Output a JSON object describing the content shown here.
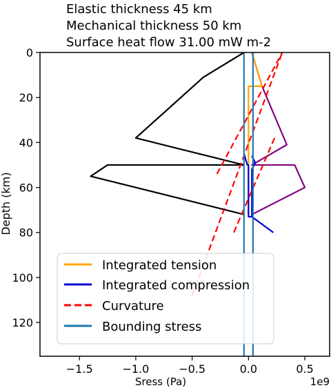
{
  "chart_data": {
    "type": "line",
    "title_lines": [
      "Elastic thickness 45 km",
      "Mechanical thickness 50 km",
      "Surface heat flow 31.00 mW m-2"
    ],
    "xlabel": "Sress (Pa)",
    "ylabel": "Depth (km)",
    "x_scale_label": "1e9",
    "xlim": [
      -1.85,
      0.72
    ],
    "ylim": [
      135,
      0
    ],
    "y_inverted": true,
    "x_ticks": [
      -1.5,
      -1.0,
      -0.5,
      0.0,
      0.5
    ],
    "x_tick_labels": [
      "−1.5",
      "−1.0",
      "−0.5",
      "0.0",
      "0.5"
    ],
    "y_ticks": [
      0,
      20,
      40,
      60,
      80,
      100,
      120
    ],
    "y_tick_labels": [
      "0",
      "20",
      "40",
      "60",
      "80",
      "100",
      "120"
    ],
    "grid": false,
    "legend_position": "lower-left",
    "legend": [
      {
        "label": "Integrated tension",
        "color": "#ffa500",
        "dash": "solid"
      },
      {
        "label": "Integrated compression",
        "color": "#0000cd",
        "dash": "solid"
      },
      {
        "label": "Curvature",
        "color": "#ff0000",
        "dash": "dashed"
      },
      {
        "label": "Bounding stress",
        "color": "#1f77b4",
        "dash": "solid"
      }
    ],
    "series": [
      {
        "key": "envelope_compression",
        "color": "#000000",
        "points": [
          [
            -0.04,
            0
          ],
          [
            -0.4,
            11
          ],
          [
            -1.0,
            38
          ],
          [
            -0.04,
            50
          ],
          [
            -1.25,
            50
          ],
          [
            -1.4,
            55
          ],
          [
            -0.04,
            72
          ]
        ]
      },
      {
        "key": "envelope_tension",
        "color": "#800080",
        "points": [
          [
            0.03,
            0
          ],
          [
            0.12,
            15
          ],
          [
            0.34,
            41
          ],
          [
            0.03,
            50
          ],
          [
            0.41,
            50
          ],
          [
            0.5,
            60
          ],
          [
            0.03,
            72
          ]
        ]
      },
      {
        "key": "integrated_tension",
        "color": "#ffa500",
        "points": [
          [
            0.03,
            0
          ],
          [
            0.12,
            15
          ],
          [
            0.0,
            15
          ],
          [
            0.0,
            72
          ]
        ]
      },
      {
        "key": "integrated_compression",
        "color": "#0000cd",
        "points": [
          [
            -0.04,
            45
          ],
          [
            -0.01,
            50
          ],
          [
            0.0,
            50
          ],
          [
            0.0,
            73
          ],
          [
            0.03,
            73
          ],
          [
            0.22,
            80
          ]
        ]
      },
      {
        "key": "integrated_compression_upper",
        "color": "#0000cd",
        "points": [
          [
            0.03,
            46
          ],
          [
            0.06,
            49
          ],
          [
            0.03,
            52
          ],
          [
            0.03,
            73
          ]
        ]
      },
      {
        "key": "curvature",
        "color": "#ff0000",
        "points": [
          [
            -0.5,
            108
          ],
          [
            0.3,
            0
          ]
        ]
      },
      {
        "key": "curvature_upper",
        "color": "#ff0000",
        "points": [
          [
            -0.28,
            54
          ],
          [
            0.3,
            0
          ]
        ]
      },
      {
        "key": "curvature_mid",
        "color": "#ff0000",
        "points": [
          [
            -0.13,
            80
          ],
          [
            0.24,
            37
          ]
        ]
      },
      {
        "key": "bounding_stress_left",
        "color": "#1f77b4",
        "points": [
          [
            -0.04,
            0
          ],
          [
            -0.04,
            135
          ]
        ]
      },
      {
        "key": "bounding_stress_right",
        "color": "#1f77b4",
        "points": [
          [
            0.04,
            0
          ],
          [
            0.04,
            135
          ]
        ]
      }
    ]
  }
}
